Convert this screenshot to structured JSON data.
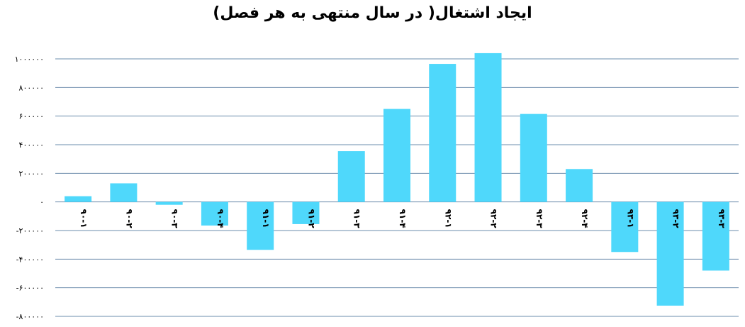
{
  "chart_data": {
    "type": "bar",
    "title": "ایجاد اشتغال( در سال منتهی به هر فصل)",
    "xlabel": "",
    "ylabel": "",
    "categories": [
      "۹۰-۱",
      "۹۰-۲",
      "۹۰-۳",
      "۹۰-۴",
      "۹۱-۱",
      "۹۱-۲",
      "۹۱-۳",
      "۹۱-۴",
      "۹۲-۱",
      "۹۲-۲",
      "۹۲-۳",
      "۹۲-۴",
      "۹۳-۱",
      "۹۳-۲",
      "۹۳-۳"
    ],
    "values": [
      40000,
      130000,
      -20000,
      -165000,
      -335000,
      -155000,
      355000,
      650000,
      965000,
      1040000,
      615000,
      230000,
      -350000,
      -725000,
      -480000
    ],
    "ylim": [
      -800000,
      1000000
    ],
    "yticks": [
      1000000,
      800000,
      600000,
      400000,
      200000,
      0,
      -200000,
      -400000,
      -600000,
      -800000
    ],
    "ytick_labels": [
      "۱۰۰۰۰۰۰",
      "۸۰۰۰۰۰",
      "۶۰۰۰۰۰",
      "۴۰۰۰۰۰",
      "۲۰۰۰۰۰",
      "۰",
      "-۲۰۰۰۰۰",
      "-۴۰۰۰۰۰",
      "-۶۰۰۰۰۰",
      "-۸۰۰۰۰۰"
    ],
    "grid": true,
    "legend": "none",
    "colors": {
      "bar": "#4fd8fb",
      "grid": "#6b8cac",
      "text": "#000000"
    }
  }
}
